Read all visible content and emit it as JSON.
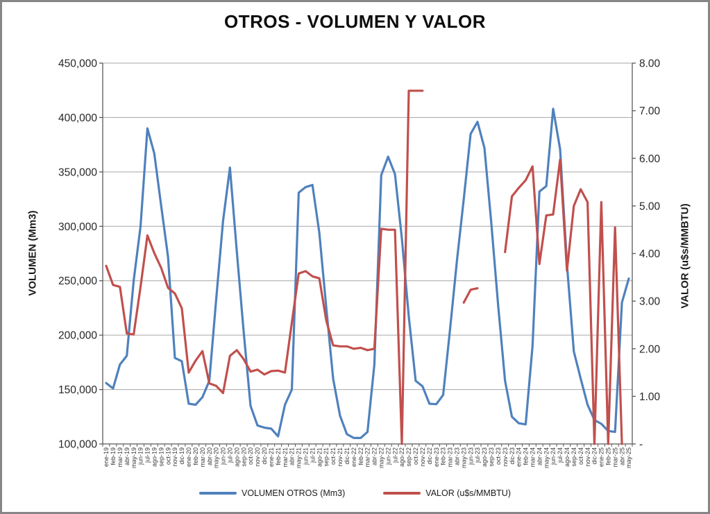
{
  "title": {
    "text": "OTROS - VOLUMEN Y VALOR"
  },
  "left_axis": {
    "title": "VOLUMEN (Mm3)",
    "ticks": [
      "450,000",
      "400,000",
      "350,000",
      "300,000",
      "250,000",
      "200,000",
      "150,000",
      "100,000"
    ]
  },
  "right_axis": {
    "title": "VALOR (u$s/MMBTU)",
    "ticks": [
      "8.00",
      "7.00",
      "6.00",
      "5.00",
      "4.00",
      "3.00",
      "2.00",
      "1.00",
      "-"
    ]
  },
  "legend": [
    {
      "label": "VOLUMEN OTROS (Mm3)",
      "color": "#4f81bd"
    },
    {
      "label": "VALOR (u$s/MMBTU)",
      "color": "#c0504d"
    }
  ],
  "chart_data": {
    "type": "line",
    "title": "OTROS - VOLUMEN Y VALOR",
    "xlabel": "",
    "ylabel_left": "VOLUMEN (Mm3)",
    "ylabel_right": "VALOR (u$s/MMBTU)",
    "left_ylim": [
      100000,
      450000
    ],
    "right_ylim": [
      0,
      8
    ],
    "grid": true,
    "grid_color": "#a6a6a6",
    "axis_color": "#595959",
    "tick_label_color": "#262626",
    "x_label_color": "#3a3a3a",
    "legend_position": "bottom",
    "categories": [
      "ene-19",
      "feb-19",
      "mar-19",
      "abr-19",
      "may-19",
      "jun-19",
      "jul-19",
      "ago-19",
      "sep-19",
      "oct-19",
      "nov-19",
      "dic-19",
      "ene-20",
      "feb-20",
      "mar-20",
      "abr-20",
      "may-20",
      "jun-20",
      "jul-20",
      "ago-20",
      "sep-20",
      "oct-20",
      "nov-20",
      "dic-20",
      "ene-21",
      "feb-21",
      "mar-21",
      "abr-21",
      "may-21",
      "jun-21",
      "jul-21",
      "ago-21",
      "sep-21",
      "oct-21",
      "nov-21",
      "dic-21",
      "ene-22",
      "feb-22",
      "mar-22",
      "abr-22",
      "may-22",
      "jun-22",
      "jul-22",
      "ago-22",
      "sep-22",
      "oct-22",
      "nov-22",
      "dic-22",
      "ene-23",
      "feb-23",
      "mar-23",
      "abr-23",
      "may-23",
      "jun-23",
      "jul-23",
      "ago-23",
      "sep-23",
      "oct-23",
      "nov-23",
      "dic-23",
      "ene-24",
      "feb-24",
      "mar-24",
      "abr-24",
      "may-24",
      "jun-24",
      "jul-24",
      "ago-24",
      "sep-24",
      "oct-24",
      "nov-24",
      "dic-24",
      "ene-25",
      "feb-25",
      "mar-25",
      "abr-25",
      "may-25"
    ],
    "series": [
      {
        "name": "VOLUMEN OTROS (Mm3)",
        "axis": "left",
        "color": "#4f81bd",
        "values": [
          156000,
          151000,
          173000,
          181000,
          250000,
          300000,
          390000,
          367000,
          319000,
          272000,
          179000,
          176000,
          137000,
          136000,
          143000,
          158000,
          233000,
          305000,
          354000,
          277000,
          203000,
          135000,
          117000,
          115000,
          114000,
          107000,
          136000,
          150000,
          331000,
          336000,
          338000,
          294000,
          226000,
          160000,
          126000,
          109000,
          105500,
          105500,
          111000,
          173000,
          347000,
          364000,
          348000,
          289000,
          217000,
          158000,
          153000,
          137000,
          136500,
          145000,
          205000,
          268000,
          325000,
          385000,
          396000,
          372000,
          303000,
          227000,
          158000,
          125000,
          119000,
          118000,
          190000,
          332000,
          337000,
          408000,
          371000,
          265000,
          185000,
          160000,
          136000,
          122000,
          118500,
          112000,
          111000,
          230000,
          252000
        ]
      },
      {
        "name": "VALOR (u$s/MMBTU)",
        "axis": "right",
        "color": "#c0504d",
        "values": [
          3.74,
          3.34,
          3.3,
          2.32,
          2.3,
          3.3,
          4.38,
          4.01,
          3.7,
          3.28,
          3.16,
          2.85,
          1.5,
          1.75,
          1.95,
          1.27,
          1.22,
          1.07,
          1.85,
          1.97,
          1.78,
          1.52,
          1.56,
          1.46,
          1.53,
          1.54,
          1.5,
          2.55,
          3.58,
          3.63,
          3.52,
          3.48,
          2.6,
          2.07,
          2.05,
          2.05,
          2.0,
          2.02,
          1.97,
          2.0,
          4.52,
          4.5,
          4.5,
          0.0,
          7.42,
          7.42,
          7.42,
          null,
          null,
          null,
          null,
          null,
          2.97,
          3.24,
          3.27,
          null,
          null,
          null,
          4.03,
          5.2,
          5.38,
          5.54,
          5.83,
          3.78,
          4.8,
          4.82,
          5.97,
          3.64,
          5.0,
          5.35,
          5.08,
          0.0,
          5.08,
          0.0,
          4.55,
          0.0,
          null
        ]
      }
    ]
  }
}
